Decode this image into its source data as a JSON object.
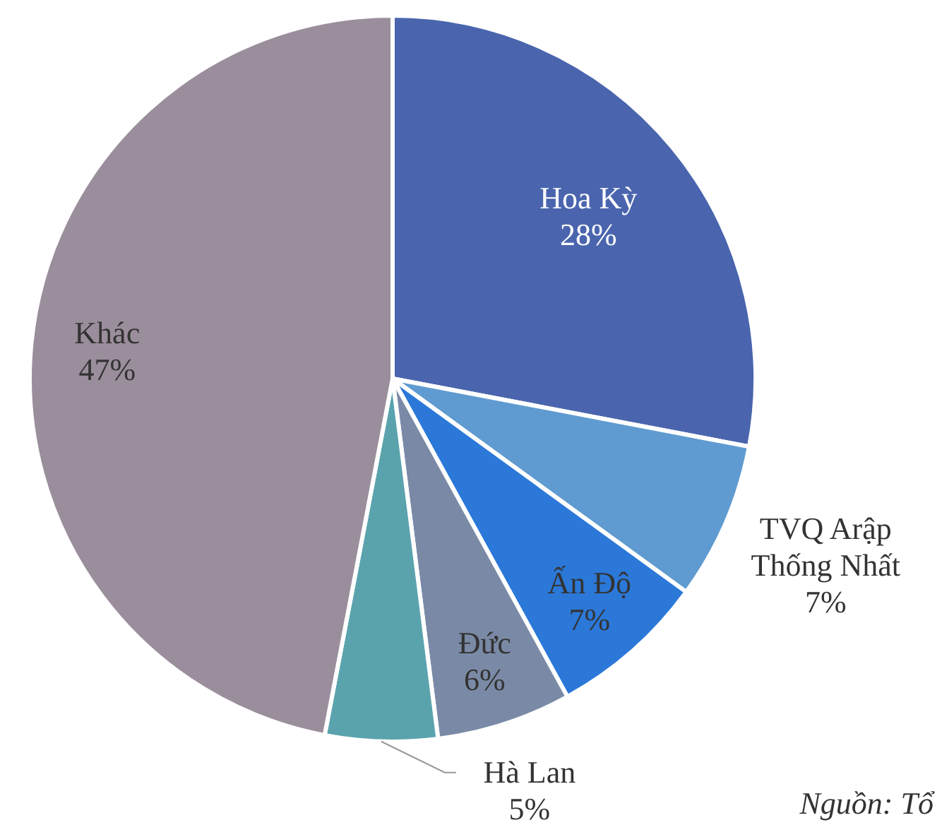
{
  "chart_data": {
    "type": "pie",
    "categories": [
      "Hoa Kỳ",
      "TVQ Arập Thống Nhất",
      "Ấn Độ",
      "Đức",
      "Hà Lan",
      "Khác"
    ],
    "values": [
      28,
      7,
      7,
      6,
      5,
      47
    ],
    "colors": [
      "#4a65ae",
      "#5f9bd0",
      "#2b78d8",
      "#7a8aa6",
      "#5aa3ad",
      "#9b8e9c"
    ],
    "value_labels": [
      "28%",
      "7%",
      "7%",
      "6%",
      "5%",
      "47%"
    ],
    "annotations": [
      "Nguồn: Tổ"
    ]
  }
}
